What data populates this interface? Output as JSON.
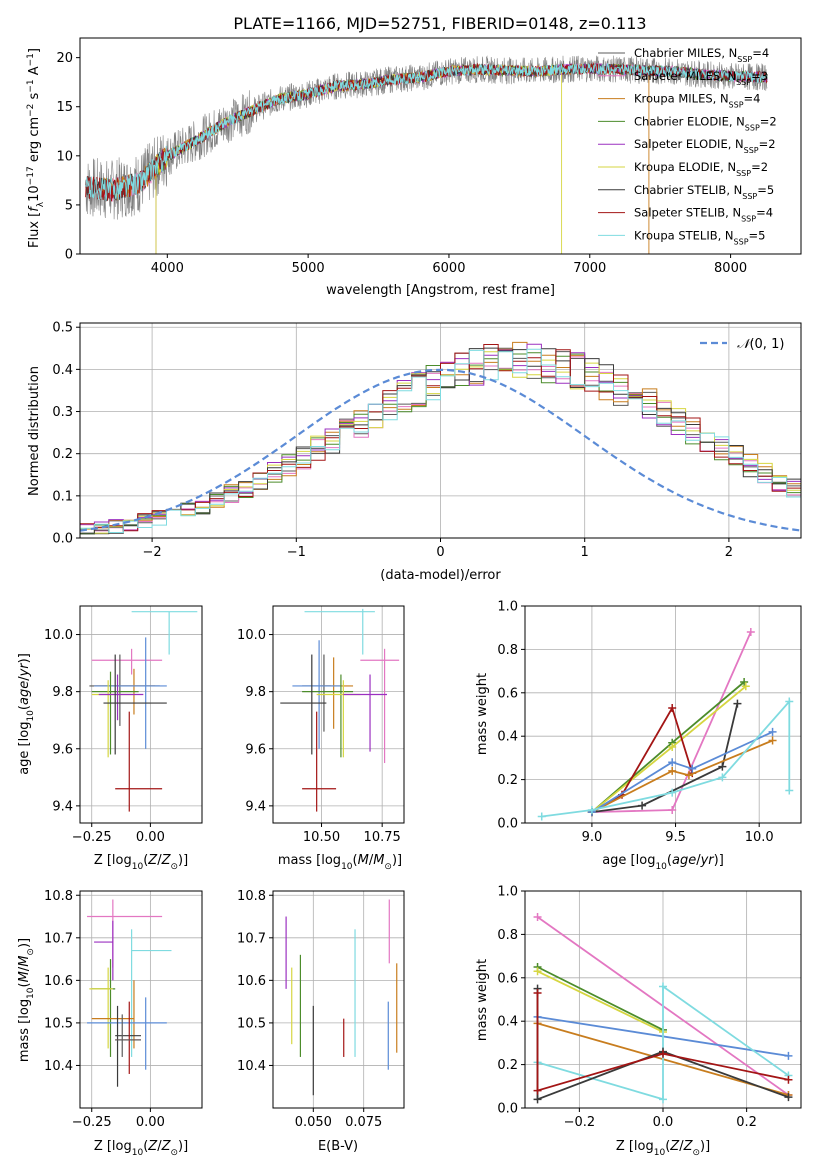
{
  "title": "PLATE=1166, MJD=52751, FIBERID=0148, z=0.113",
  "colors": {
    "chabrier_miles": "#5b5b5b",
    "salpeter_miles": "#e377c2",
    "kroupa_miles": "#c87d1e",
    "chabrier_elodie": "#4c8c2b",
    "salpeter_elodie": "#9b30c0",
    "kroupa_elodie": "#d6d641",
    "chabrier_stelib": "#3a3a3a",
    "salpeter_stelib": "#a31515",
    "kroupa_stelib": "#7fdbe0",
    "data_grey": "#808080",
    "normal_curve": "#5b8bd6"
  },
  "chart_data": [
    {
      "type": "line",
      "panel": "spectrum",
      "xlabel": "wavelength [Angstrom, rest frame]",
      "ylabel": "Flux [f_λ10^-17 erg cm^-2 s^-1 A^-1]",
      "xlim": [
        3380,
        8500
      ],
      "ylim": [
        0,
        22
      ],
      "xticks": [
        4000,
        5000,
        6000,
        7000,
        8000
      ],
      "yticks": [
        0,
        5,
        10,
        15,
        20
      ],
      "continuum_x": [
        3420,
        3600,
        3800,
        4000,
        4200,
        4400,
        4600,
        4800,
        5000,
        5200,
        5400,
        5600,
        5800,
        6000,
        6200,
        6400,
        6600,
        6800,
        7000,
        7200,
        7400,
        7600,
        7800,
        8000,
        8260
      ],
      "continuum_y": [
        6.8,
        6.5,
        7.2,
        10.0,
        11.5,
        13.3,
        14.6,
        15.8,
        16.3,
        17.1,
        17.3,
        17.8,
        18.0,
        18.6,
        18.8,
        18.7,
        18.6,
        18.8,
        18.9,
        18.8,
        18.7,
        18.6,
        18.3,
        18.1,
        18.0
      ],
      "legend": [
        {
          "label": "Chabrier MILES, N",
          "sub": "SSP",
          "count": "=4",
          "color_key": "chabrier_miles"
        },
        {
          "label": "Salpeter MILES, N",
          "sub": "SSP",
          "count": "=3",
          "color_key": "salpeter_miles"
        },
        {
          "label": "Kroupa MILES, N",
          "sub": "SSP",
          "count": "=4",
          "color_key": "kroupa_miles"
        },
        {
          "label": "Chabrier ELODIE, N",
          "sub": "SSP",
          "count": "=2",
          "color_key": "chabrier_elodie"
        },
        {
          "label": "Salpeter ELODIE, N",
          "sub": "SSP",
          "count": "=2",
          "color_key": "salpeter_elodie"
        },
        {
          "label": "Kroupa ELODIE, N",
          "sub": "SSP",
          "count": "=2",
          "color_key": "kroupa_elodie"
        },
        {
          "label": "Chabrier STELIB, N",
          "sub": "SSP",
          "count": "=5",
          "color_key": "chabrier_stelib"
        },
        {
          "label": "Salpeter STELIB, N",
          "sub": "SSP",
          "count": "=4",
          "color_key": "salpeter_stelib"
        },
        {
          "label": "Kroupa STELIB, N",
          "sub": "SSP",
          "count": "=5",
          "color_key": "kroupa_stelib"
        }
      ]
    },
    {
      "type": "histogram",
      "panel": "residuals",
      "xlabel": "(data-model)/error",
      "ylabel": "Normed distribution",
      "xlim": [
        -2.5,
        2.5
      ],
      "ylim": [
        0,
        0.51
      ],
      "xticks": [
        -2,
        -1,
        0,
        1,
        2
      ],
      "yticks": [
        0.0,
        0.1,
        0.2,
        0.3,
        0.4,
        0.5
      ],
      "bin_start": -2.5,
      "bin_width": 0.1,
      "base_density": [
        0.018,
        0.022,
        0.027,
        0.033,
        0.04,
        0.047,
        0.056,
        0.066,
        0.077,
        0.09,
        0.104,
        0.119,
        0.135,
        0.153,
        0.171,
        0.191,
        0.211,
        0.232,
        0.253,
        0.274,
        0.295,
        0.315,
        0.335,
        0.353,
        0.369,
        0.384,
        0.396,
        0.406,
        0.414,
        0.418,
        0.42,
        0.418,
        0.414,
        0.406,
        0.396,
        0.384,
        0.369,
        0.353,
        0.335,
        0.315,
        0.295,
        0.274,
        0.253,
        0.232,
        0.211,
        0.191,
        0.171,
        0.153,
        0.135,
        0.119
      ],
      "legend_label": "N(0,1)",
      "normal_curve_key": "normal_curve"
    },
    {
      "type": "errorbar",
      "panel": "age_vs_Z",
      "xlabel": "Z [log10(Z/Z⊙)]",
      "ylabel": "age [log10(age/yr)]",
      "xlim": [
        -0.3,
        0.22
      ],
      "ylim": [
        9.34,
        10.1
      ],
      "xticks": [
        -0.25,
        0.0
      ],
      "yticks": [
        9.4,
        9.6,
        9.8,
        10.0
      ],
      "points": [
        {
          "key": "kroupa_stelib",
          "x": 0.08,
          "xlo": -0.08,
          "xhi": 0.2,
          "y": 10.08,
          "ylo": 9.93,
          "yhi": 10.08
        },
        {
          "key": "salpeter_miles",
          "x": -0.08,
          "xlo": -0.25,
          "xhi": 0.05,
          "y": 9.91,
          "ylo": 9.86,
          "yhi": 9.95
        },
        {
          "key": "chabrier_miles",
          "x": -0.13,
          "xlo": -0.26,
          "xhi": 0.04,
          "y": 9.82,
          "ylo": 9.68,
          "yhi": 9.93
        },
        {
          "key": "kroupa_miles",
          "x": -0.07,
          "xlo": -0.24,
          "xhi": 0.02,
          "y": 9.82,
          "ylo": 9.72,
          "yhi": 9.88
        },
        {
          "key": "normal_curve",
          "x": -0.02,
          "xlo": -0.24,
          "xhi": 0.07,
          "y": 9.82,
          "ylo": 9.6,
          "yhi": 9.99
        },
        {
          "key": "chabrier_elodie",
          "x": -0.17,
          "xlo": -0.25,
          "xhi": -0.05,
          "y": 9.8,
          "ylo": 9.58,
          "yhi": 9.87
        },
        {
          "key": "kroupa_elodie",
          "x": -0.18,
          "xlo": -0.25,
          "xhi": -0.07,
          "y": 9.79,
          "ylo": 9.57,
          "yhi": 9.84
        },
        {
          "key": "salpeter_elodie",
          "x": -0.14,
          "xlo": -0.22,
          "xhi": -0.03,
          "y": 9.79,
          "ylo": 9.7,
          "yhi": 9.86
        },
        {
          "key": "chabrier_stelib",
          "x": -0.15,
          "xlo": -0.2,
          "xhi": 0.07,
          "y": 9.76,
          "ylo": 9.58,
          "yhi": 9.93
        },
        {
          "key": "salpeter_stelib",
          "x": -0.09,
          "xlo": -0.15,
          "xhi": 0.05,
          "y": 9.46,
          "ylo": 9.38,
          "yhi": 9.73
        }
      ]
    },
    {
      "type": "errorbar",
      "panel": "age_vs_mass",
      "xlabel": "mass [log10(M/M⊙)]",
      "ylabel": "",
      "xlim": [
        10.3,
        10.84
      ],
      "ylim": [
        9.34,
        10.1
      ],
      "xticks": [
        10.5,
        10.75
      ],
      "yticks": [
        9.4,
        9.6,
        9.8,
        10.0
      ],
      "points": [
        {
          "key": "kroupa_stelib",
          "x": 10.67,
          "xlo": 10.43,
          "xhi": 10.72,
          "y": 10.08,
          "ylo": 9.93,
          "yhi": 10.09
        },
        {
          "key": "salpeter_miles",
          "x": 10.76,
          "xlo": 10.66,
          "xhi": 10.82,
          "y": 9.91,
          "ylo": 9.55,
          "yhi": 9.95
        },
        {
          "key": "chabrier_miles",
          "x": 10.51,
          "xlo": 10.42,
          "xhi": 10.54,
          "y": 9.82,
          "ylo": 9.66,
          "yhi": 9.93
        },
        {
          "key": "kroupa_miles",
          "x": 10.55,
          "xlo": 10.5,
          "xhi": 10.63,
          "y": 9.82,
          "ylo": 9.67,
          "yhi": 9.92
        },
        {
          "key": "normal_curve",
          "x": 10.49,
          "xlo": 10.38,
          "xhi": 10.58,
          "y": 9.82,
          "ylo": 9.6,
          "yhi": 9.98
        },
        {
          "key": "chabrier_elodie",
          "x": 10.58,
          "xlo": 10.42,
          "xhi": 10.63,
          "y": 9.8,
          "ylo": 9.57,
          "yhi": 9.86
        },
        {
          "key": "kroupa_elodie",
          "x": 10.59,
          "xlo": 10.48,
          "xhi": 10.66,
          "y": 9.79,
          "ylo": 9.57,
          "yhi": 9.84
        },
        {
          "key": "salpeter_elodie",
          "x": 10.7,
          "xlo": 10.59,
          "xhi": 10.77,
          "y": 9.79,
          "ylo": 9.59,
          "yhi": 9.86
        },
        {
          "key": "chabrier_stelib",
          "x": 10.46,
          "xlo": 10.33,
          "xhi": 10.52,
          "y": 9.76,
          "ylo": 9.58,
          "yhi": 9.93
        },
        {
          "key": "salpeter_stelib",
          "x": 10.48,
          "xlo": 10.42,
          "xhi": 10.56,
          "y": 9.46,
          "ylo": 9.38,
          "yhi": 9.73
        }
      ]
    },
    {
      "type": "line",
      "panel": "mass_weight_vs_age",
      "xlabel": "age [log10(age/yr)]",
      "ylabel": "mass weight",
      "xlim": [
        8.6,
        10.25
      ],
      "ylim": [
        0,
        1.0
      ],
      "xticks": [
        9.0,
        9.5,
        10.0
      ],
      "yticks": [
        0.0,
        0.2,
        0.4,
        0.6,
        0.8,
        1.0
      ],
      "series": [
        {
          "key": "salpeter_miles",
          "x": [
            9.0,
            9.48,
            9.95
          ],
          "y": [
            0.05,
            0.06,
            0.88
          ]
        },
        {
          "key": "chabrier_elodie",
          "x": [
            9.0,
            9.48,
            9.91
          ],
          "y": [
            0.05,
            0.37,
            0.65
          ]
        },
        {
          "key": "kroupa_elodie",
          "x": [
            9.0,
            9.48,
            9.92
          ],
          "y": [
            0.05,
            0.35,
            0.63
          ]
        },
        {
          "key": "salpeter_stelib",
          "x": [
            9.0,
            9.18,
            9.48,
            9.6
          ],
          "y": [
            0.05,
            0.13,
            0.53,
            0.23
          ]
        },
        {
          "key": "chabrier_stelib",
          "x": [
            9.0,
            9.3,
            9.78,
            9.87
          ],
          "y": [
            0.05,
            0.08,
            0.26,
            0.55
          ]
        },
        {
          "key": "kroupa_miles",
          "x": [
            9.0,
            9.48,
            9.58,
            10.08
          ],
          "y": [
            0.05,
            0.24,
            0.22,
            0.38
          ]
        },
        {
          "key": "normal_curve",
          "x": [
            9.0,
            9.48,
            9.6,
            10.08
          ],
          "y": [
            0.05,
            0.28,
            0.25,
            0.42
          ]
        },
        {
          "key": "kroupa_stelib",
          "x": [
            8.7,
            9.0,
            9.48,
            9.78,
            10.18,
            10.18
          ],
          "y": [
            0.03,
            0.06,
            0.14,
            0.21,
            0.56,
            0.15
          ]
        }
      ]
    },
    {
      "type": "errorbar",
      "panel": "mass_vs_Z",
      "xlabel": "Z [log10(Z/Z⊙)]",
      "ylabel": "mass [log10(M/M⊙)]",
      "xlim": [
        -0.3,
        0.22
      ],
      "ylim": [
        10.3,
        10.81
      ],
      "xticks": [
        -0.25,
        0.0
      ],
      "yticks": [
        10.4,
        10.5,
        10.6,
        10.7,
        10.8
      ],
      "points": [
        {
          "key": "salpeter_miles",
          "x": -0.16,
          "xlo": -0.27,
          "xhi": 0.05,
          "y": 10.75,
          "ylo": 10.63,
          "yhi": 10.79
        },
        {
          "key": "salpeter_elodie",
          "x": -0.16,
          "xlo": -0.24,
          "xhi": -0.16,
          "y": 10.69,
          "ylo": 10.6,
          "yhi": 10.74
        },
        {
          "key": "kroupa_stelib",
          "x": -0.08,
          "xlo": -0.08,
          "xhi": 0.09,
          "y": 10.67,
          "ylo": 10.42,
          "yhi": 10.72
        },
        {
          "key": "chabrier_elodie",
          "x": -0.17,
          "xlo": -0.25,
          "xhi": -0.15,
          "y": 10.58,
          "ylo": 10.42,
          "yhi": 10.65
        },
        {
          "key": "kroupa_elodie",
          "x": -0.18,
          "xlo": -0.26,
          "xhi": -0.16,
          "y": 10.58,
          "ylo": 10.44,
          "yhi": 10.63
        },
        {
          "key": "kroupa_miles",
          "x": -0.07,
          "xlo": -0.25,
          "xhi": -0.07,
          "y": 10.51,
          "ylo": 10.44,
          "yhi": 10.6
        },
        {
          "key": "normal_curve",
          "x": -0.02,
          "xlo": -0.27,
          "xhi": 0.07,
          "y": 10.5,
          "ylo": 10.39,
          "yhi": 10.56
        },
        {
          "key": "chabrier_stelib",
          "x": -0.14,
          "xlo": -0.15,
          "xhi": -0.04,
          "y": 10.47,
          "ylo": 10.35,
          "yhi": 10.54
        },
        {
          "key": "salpeter_stelib",
          "x": -0.09,
          "xlo": -0.15,
          "xhi": -0.04,
          "y": 10.46,
          "ylo": 10.38,
          "yhi": 10.55
        },
        {
          "key": "chabrier_miles",
          "x": -0.12,
          "xlo": -0.15,
          "xhi": -0.04,
          "y": 10.46,
          "ylo": 10.42,
          "yhi": 10.52
        }
      ]
    },
    {
      "type": "errorbar",
      "panel": "mass_vs_ebv",
      "xlabel": "E(B-V)",
      "ylabel": "",
      "xlim": [
        0.03,
        0.095
      ],
      "ylim": [
        10.3,
        10.81
      ],
      "xticks": [
        0.05,
        0.075
      ],
      "yticks": [
        10.4,
        10.5,
        10.6,
        10.7,
        10.8
      ],
      "points": [
        {
          "key": "salpeter_elodie",
          "x": 0.0365,
          "y": 10.66,
          "ylo": 10.58,
          "yhi": 10.75
        },
        {
          "key": "kroupa_elodie",
          "x": 0.0393,
          "y": 10.54,
          "ylo": 10.45,
          "yhi": 10.63
        },
        {
          "key": "chabrier_elodie",
          "x": 0.0436,
          "y": 10.54,
          "ylo": 10.42,
          "yhi": 10.66
        },
        {
          "key": "chabrier_stelib",
          "x": 0.05,
          "y": 10.44,
          "ylo": 10.33,
          "yhi": 10.54
        },
        {
          "key": "salpeter_stelib",
          "x": 0.0651,
          "y": 10.46,
          "ylo": 10.42,
          "yhi": 10.51
        },
        {
          "key": "kroupa_stelib",
          "x": 0.0707,
          "y": 10.57,
          "ylo": 10.42,
          "yhi": 10.72
        },
        {
          "key": "normal_curve",
          "x": 0.0872,
          "y": 10.47,
          "ylo": 10.39,
          "yhi": 10.55
        },
        {
          "key": "salpeter_miles",
          "x": 0.0877,
          "y": 10.73,
          "ylo": 10.64,
          "yhi": 10.79
        },
        {
          "key": "kroupa_miles",
          "x": 0.0914,
          "y": 10.53,
          "ylo": 10.43,
          "yhi": 10.64
        }
      ]
    },
    {
      "type": "line",
      "panel": "mass_weight_vs_Z",
      "xlabel": "Z [log10(Z/Z⊙)]",
      "ylabel": "mass weight",
      "xlim": [
        -0.33,
        0.33
      ],
      "ylim": [
        0,
        1.0
      ],
      "xticks": [
        -0.2,
        0.0,
        0.2
      ],
      "yticks": [
        0.0,
        0.2,
        0.4,
        0.6,
        0.8,
        1.0
      ],
      "series": [
        {
          "key": "salpeter_miles",
          "x": [
            -0.3,
            0.3
          ],
          "y": [
            0.88,
            0.06
          ]
        },
        {
          "key": "chabrier_elodie",
          "x": [
            -0.3,
            0.0
          ],
          "y": [
            0.65,
            0.36
          ]
        },
        {
          "key": "kroupa_elodie",
          "x": [
            -0.3,
            0.0
          ],
          "y": [
            0.63,
            0.35
          ]
        },
        {
          "key": "normal_curve",
          "x": [
            -0.3,
            0.3
          ],
          "y": [
            0.42,
            0.24
          ]
        },
        {
          "key": "kroupa_miles",
          "x": [
            -0.3,
            0.3
          ],
          "y": [
            0.39,
            0.06
          ]
        },
        {
          "key": "kroupa_stelib",
          "x": [
            -0.3,
            0.0,
            0.0,
            0.3
          ],
          "y": [
            0.21,
            0.04,
            0.56,
            0.15
          ]
        },
        {
          "key": "chabrier_stelib",
          "x": [
            -0.3,
            -0.3,
            0.0,
            0.3
          ],
          "y": [
            0.55,
            0.04,
            0.26,
            0.05
          ]
        },
        {
          "key": "salpeter_stelib",
          "x": [
            -0.3,
            -0.3,
            0.0,
            0.3
          ],
          "y": [
            0.53,
            0.08,
            0.25,
            0.13
          ]
        }
      ]
    }
  ]
}
